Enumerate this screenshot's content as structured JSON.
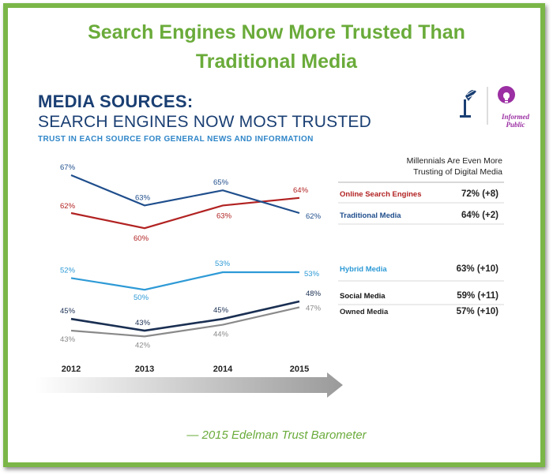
{
  "header": {
    "line1": "Search Engines Now More Trusted Than",
    "line2": "Traditional Media"
  },
  "infographic": {
    "title": "MEDIA SOURCES:",
    "subtitle": "SEARCH ENGINES NOW MOST TRUSTED",
    "caption": "TRUST IN EACH SOURCE FOR GENERAL NEWS AND INFORMATION",
    "logo_text": "Informed Public",
    "millennials_heading_1": "Millennials Are Even More",
    "millennials_heading_2": "Trusting of Digital Media"
  },
  "credit": "— 2015 Edelman Trust Barometer",
  "colors": {
    "headline": "#6aab3a",
    "navy": "#1a3f73",
    "traditional": "#1f4e8c",
    "search": "#b22222",
    "hybrid": "#2e9ad6",
    "social": "#1a2f52",
    "owned": "#8a8a8a",
    "frame": "#7ab648"
  },
  "chart_data": {
    "type": "line",
    "x": [
      "2012",
      "2013",
      "2014",
      "2015"
    ],
    "ylim": [
      40,
      68
    ],
    "series": [
      {
        "name": "Online Search Engines",
        "values": [
          62,
          60,
          63,
          64
        ],
        "labels": [
          "62%",
          "60%",
          "63%",
          "64%"
        ],
        "color": "#b22222",
        "millennials": "72% (+8)"
      },
      {
        "name": "Traditional Media",
        "values": [
          67,
          63,
          65,
          62
        ],
        "labels": [
          "67%",
          "63%",
          "65%",
          "62%"
        ],
        "color": "#1f4e8c",
        "millennials": "64% (+2)"
      },
      {
        "name": "Hybrid Media",
        "values": [
          52,
          50,
          53,
          53
        ],
        "labels": [
          "52%",
          "50%",
          "53%",
          "53%"
        ],
        "color": "#2e9ad6",
        "millennials": "63% (+10)"
      },
      {
        "name": "Social Media",
        "values": [
          45,
          43,
          45,
          48
        ],
        "labels": [
          "45%",
          "43%",
          "45%",
          "48%"
        ],
        "color": "#1a2f52",
        "millennials": "59% (+11)"
      },
      {
        "name": "Owned Media",
        "values": [
          43,
          42,
          44,
          47
        ],
        "labels": [
          "43%",
          "42%",
          "44%",
          "47%"
        ],
        "color": "#8a8a8a",
        "millennials": "57% (+10)"
      }
    ]
  }
}
